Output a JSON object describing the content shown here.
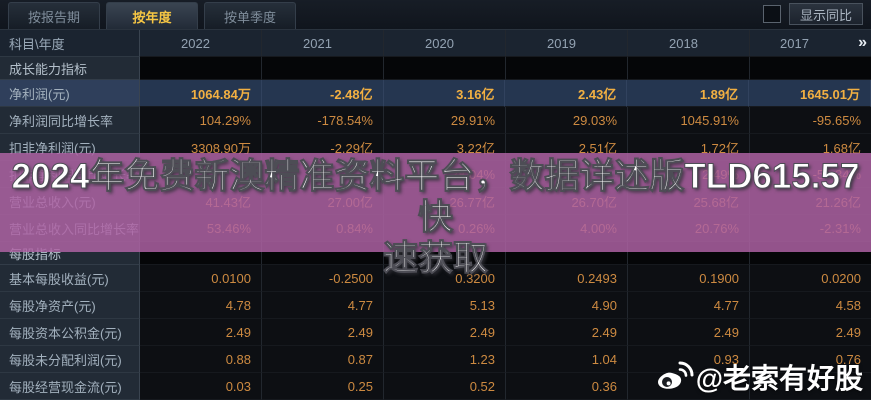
{
  "tabs": [
    {
      "label": "按报告期",
      "active": false
    },
    {
      "label": "按年度",
      "active": true
    },
    {
      "label": "按单季度",
      "active": false
    }
  ],
  "controls": {
    "yoy_checkbox_checked": false,
    "yoy_label": "显示同比"
  },
  "table": {
    "corner_header": "科目\\年度",
    "years": [
      "2022",
      "2021",
      "2020",
      "2019",
      "2018",
      "2017"
    ],
    "more_icon": "»",
    "rows": [
      {
        "type": "section",
        "label": "成长能力指标",
        "values": [
          "",
          "",
          "",
          "",
          "",
          ""
        ]
      },
      {
        "type": "data",
        "label": "净利润(元)",
        "highlight": true,
        "values": [
          "1064.84万",
          "-2.48亿",
          "3.16亿",
          "2.43亿",
          "1.89亿",
          "1645.01万"
        ]
      },
      {
        "type": "data",
        "label": "净利润同比增长率",
        "values": [
          "104.29%",
          "-178.54%",
          "29.91%",
          "29.03%",
          "1045.91%",
          "-95.65%"
        ]
      },
      {
        "type": "data",
        "label": "扣非净利润(元)",
        "values": [
          "3308.90万",
          "-2.29亿",
          "3.22亿",
          "2.51亿",
          "1.72亿",
          "1.68亿"
        ]
      },
      {
        "type": "data",
        "label": "扣非净利润同比增长率",
        "values": [
          "",
          "",
          "28.04%",
          "",
          "2.49%",
          "-56.34%"
        ]
      },
      {
        "type": "data",
        "label": "营业总收入(元)",
        "values": [
          "41.43亿",
          "27.00亿",
          "26.77亿",
          "26.70亿",
          "25.68亿",
          "21.26亿"
        ]
      },
      {
        "type": "data",
        "label": "营业总收入同比增长率",
        "values": [
          "53.46%",
          "0.84%",
          "0.26%",
          "4.00%",
          "20.76%",
          "-2.31%"
        ]
      },
      {
        "type": "section",
        "label": "每股指标",
        "values": [
          "",
          "",
          "",
          "",
          "",
          ""
        ]
      },
      {
        "type": "data",
        "label": "基本每股收益(元)",
        "values": [
          "0.0100",
          "-0.2500",
          "0.3200",
          "0.2493",
          "0.1900",
          "0.0200"
        ]
      },
      {
        "type": "data",
        "label": "每股净资产(元)",
        "values": [
          "4.78",
          "4.77",
          "5.13",
          "4.90",
          "4.77",
          "4.58"
        ]
      },
      {
        "type": "data",
        "label": "每股资本公积金(元)",
        "values": [
          "2.49",
          "2.49",
          "2.49",
          "2.49",
          "2.49",
          "2.49"
        ]
      },
      {
        "type": "data",
        "label": "每股未分配利润(元)",
        "values": [
          "0.88",
          "0.87",
          "1.23",
          "1.04",
          "0.93",
          "0.76"
        ]
      },
      {
        "type": "data",
        "label": "每股经营现金流(元)",
        "values": [
          "0.03",
          "0.25",
          "0.52",
          "0.36",
          "",
          ""
        ]
      }
    ]
  },
  "watermark": {
    "line1": "2024年免费新澳精准资料平台，数据详述版TLD615.57快",
    "line2": "速获取"
  },
  "badge": {
    "logo": "weibo-icon",
    "text": "@老索有好股"
  },
  "colors": {
    "value_orange": "#cd8a41",
    "highlight_gold": "#f2b042",
    "active_tab_gold": "#f6c644",
    "highlight_row_blue": "#253650",
    "overlay_purple": "#af63a4",
    "label_col_bg": "#222b36"
  }
}
